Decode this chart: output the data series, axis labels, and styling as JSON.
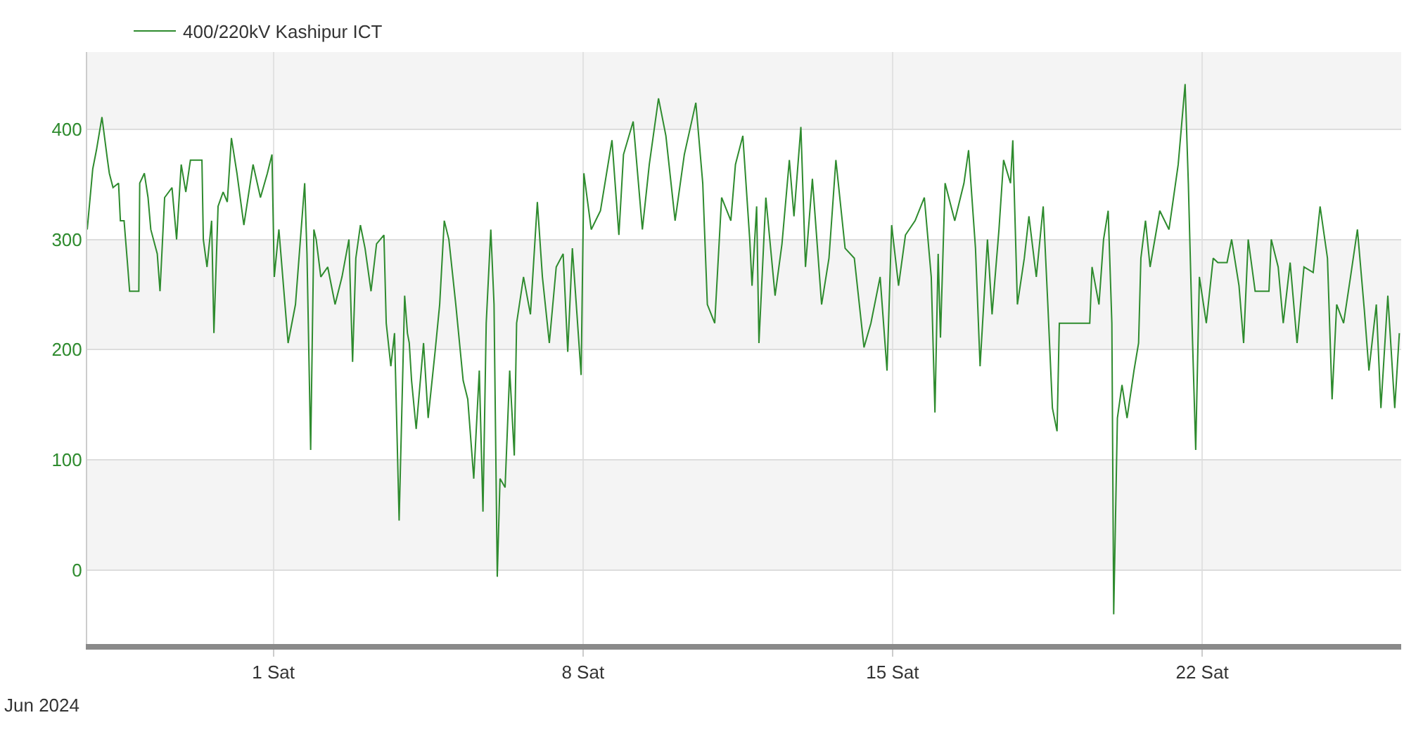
{
  "chart_data": {
    "type": "line",
    "xlabel": "Jun 2024",
    "xlim": [
      "2024-05-27T19:00",
      "2024-06-26T12:00"
    ],
    "xticks": [
      {
        "value": "2024-06-01",
        "label": "1 Sat"
      },
      {
        "value": "2024-06-08",
        "label": "8 Sat"
      },
      {
        "value": "2024-06-15",
        "label": "15 Sat"
      },
      {
        "value": "2024-06-22",
        "label": "22 Sat"
      }
    ],
    "ylim": [
      -67,
      470
    ],
    "yticks": [
      0,
      100,
      200,
      300,
      400
    ],
    "grid": true,
    "legend": "top left",
    "marker": "none",
    "line_style": "solid",
    "bands": [
      {
        "axis": "y",
        "from": 0,
        "to": 100,
        "color": "#f4f4f4"
      },
      {
        "axis": "y",
        "from": 200,
        "to": 300,
        "color": "#f4f4f4"
      },
      {
        "axis": "y",
        "from": 400,
        "to": 470,
        "color": "#f4f4f4"
      }
    ],
    "x": [
      "2024-05-27T19:00",
      "2024-05-27T22:00",
      "2024-05-28T00:00",
      "2024-05-28T03:00",
      "2024-05-28T06:00",
      "2024-05-28T07:00",
      "2024-05-28T09:00",
      "2024-05-28T12:00",
      "2024-05-28T13:00",
      "2024-05-28T15:00",
      "2024-05-28T17:00",
      "2024-05-28T18:00",
      "2024-05-28T23:00",
      "2024-05-28T23:30",
      "2024-05-29T02:00",
      "2024-05-29T04:00",
      "2024-05-29T05:30",
      "2024-05-29T09:00",
      "2024-05-29T10:30",
      "2024-05-29T13:00",
      "2024-05-29T17:00",
      "2024-05-29T19:30",
      "2024-05-29T22:00",
      "2024-05-30T00:30",
      "2024-05-30T03:00",
      "2024-05-30T09:15",
      "2024-05-30T10:00",
      "2024-05-30T12:00",
      "2024-05-30T14:30",
      "2024-05-30T15:45",
      "2024-05-30T18:00",
      "2024-05-30T20:45",
      "2024-05-30T23:00",
      "2024-05-31T01:15",
      "2024-05-31T04:15",
      "2024-05-31T08:00",
      "2024-05-31T13:00",
      "2024-05-31T17:00",
      "2024-05-31T20:45",
      "2024-05-31T23:15",
      "2024-06-01T00:30",
      "2024-06-01T03:00",
      "2024-06-01T08:00",
      "2024-06-01T12:00",
      "2024-06-01T17:00",
      "2024-06-01T18:15",
      "2024-06-01T20:15",
      "2024-06-01T22:00",
      "2024-06-01T23:15",
      "2024-06-02T01:45",
      "2024-06-02T05:30",
      "2024-06-02T09:30",
      "2024-06-02T13:15",
      "2024-06-02T17:00",
      "2024-06-02T19:00",
      "2024-06-02T20:45",
      "2024-06-02T23:15",
      "2024-06-03T01:45",
      "2024-06-03T05:00",
      "2024-06-03T08:00",
      "2024-06-03T12:00",
      "2024-06-03T13:15",
      "2024-06-03T15:45",
      "2024-06-03T17:45",
      "2024-06-03T20:15",
      "2024-06-03T23:15",
      "2024-06-04T00:45",
      "2024-06-04T01:45",
      "2024-06-04T03:00",
      "2024-06-04T05:30",
      "2024-06-04T09:30",
      "2024-06-04T12:00",
      "2024-06-04T15:45",
      "2024-06-04T18:15",
      "2024-06-04T20:45",
      "2024-06-04T23:15",
      "2024-06-05T03:00",
      "2024-06-05T07:00",
      "2024-06-05T09:30",
      "2024-06-05T12:45",
      "2024-06-05T15:45",
      "2024-06-05T17:45",
      "2024-06-05T19:30",
      "2024-06-05T22:00",
      "2024-06-05T23:45",
      "2024-06-06T01:30",
      "2024-06-06T03:00",
      "2024-06-06T05:45",
      "2024-06-06T08:15",
      "2024-06-06T10:45",
      "2024-06-06T12:00",
      "2024-06-06T15:45",
      "2024-06-06T19:30",
      "2024-06-06T23:15",
      "2024-06-07T02:00",
      "2024-06-07T05:45",
      "2024-06-07T09:30",
      "2024-06-07T13:15",
      "2024-06-07T15:45",
      "2024-06-07T18:15",
      "2024-06-07T20:45",
      "2024-06-07T23:00",
      "2024-06-08T00:30",
      "2024-06-08T04:30",
      "2024-06-08T09:30",
      "2024-06-08T15:45",
      "2024-06-08T19:30",
      "2024-06-08T22:00",
      "2024-06-09T03:15",
      "2024-06-09T08:15",
      "2024-06-09T12:00",
      "2024-06-09T17:00",
      "2024-06-09T21:00",
      "2024-06-10T02:00",
      "2024-06-10T07:00",
      "2024-06-10T13:15",
      "2024-06-10T17:00",
      "2024-06-10T19:30",
      "2024-06-10T23:30",
      "2024-06-11T03:15",
      "2024-06-11T08:15",
      "2024-06-11T10:45",
      "2024-06-11T14:45",
      "2024-06-11T18:30",
      "2024-06-11T19:45",
      "2024-06-11T22:15",
      "2024-06-11T23:30",
      "2024-06-12T03:15",
      "2024-06-12T08:15",
      "2024-06-12T12:00",
      "2024-06-12T16:00",
      "2024-06-12T18:30",
      "2024-06-12T22:15",
      "2024-06-13T00:45",
      "2024-06-13T04:30",
      "2024-06-13T09:30",
      "2024-06-13T13:30",
      "2024-06-13T17:15",
      "2024-06-13T22:15",
      "2024-06-14T03:15",
      "2024-06-14T08:30",
      "2024-06-14T12:15",
      "2024-06-14T17:15",
      "2024-06-14T21:00",
      "2024-06-14T23:30",
      "2024-06-15T03:15",
      "2024-06-15T07:00",
      "2024-06-15T12:15",
      "2024-06-15T17:15",
      "2024-06-15T21:00",
      "2024-06-15T23:00",
      "2024-06-16T00:45",
      "2024-06-16T02:00",
      "2024-06-16T04:30",
      "2024-06-16T09:45",
      "2024-06-16T14:45",
      "2024-06-16T17:15",
      "2024-06-16T21:00",
      "2024-06-16T23:30",
      "2024-06-17T03:30",
      "2024-06-17T06:00",
      "2024-06-17T09:45",
      "2024-06-17T12:15",
      "2024-06-17T16:00",
      "2024-06-17T17:15",
      "2024-06-17T19:45",
      "2024-06-17T23:30",
      "2024-06-18T02:00",
      "2024-06-18T06:00",
      "2024-06-18T09:45",
      "2024-06-18T12:15",
      "2024-06-18T14:45",
      "2024-06-18T17:15",
      "2024-06-18T18:30",
      "2024-06-19T11:00",
      "2024-06-19T12:15",
      "2024-06-19T16:00",
      "2024-06-19T18:30",
      "2024-06-19T21:00",
      "2024-06-19T23:00",
      "2024-06-20T00:00",
      "2024-06-20T02:00",
      "2024-06-20T04:30",
      "2024-06-20T07:15",
      "2024-06-20T11:00",
      "2024-06-20T13:30",
      "2024-06-20T14:45",
      "2024-06-20T17:15",
      "2024-06-20T19:45",
      "2024-06-21T01:00",
      "2024-06-21T06:00",
      "2024-06-21T11:00",
      "2024-06-21T14:45",
      "2024-06-21T16:30",
      "2024-06-21T18:30",
      "2024-06-21T20:30",
      "2024-06-21T22:30",
      "2024-06-22T02:15",
      "2024-06-22T06:00",
      "2024-06-22T08:30",
      "2024-06-22T13:30",
      "2024-06-22T16:00",
      "2024-06-22T20:00",
      "2024-06-22T22:30",
      "2024-06-23T01:00",
      "2024-06-23T04:45",
      "2024-06-23T12:15",
      "2024-06-23T13:30",
      "2024-06-23T17:15",
      "2024-06-23T20:00",
      "2024-06-23T23:45",
      "2024-06-24T03:30",
      "2024-06-24T07:15",
      "2024-06-24T12:15",
      "2024-06-24T16:00",
      "2024-06-24T20:00",
      "2024-06-24T22:30",
      "2024-06-25T01:00",
      "2024-06-25T04:45",
      "2024-06-25T08:30",
      "2024-06-25T12:15",
      "2024-06-25T16:00",
      "2024-06-25T18:30",
      "2024-06-25T22:30",
      "2024-06-26T01:00",
      "2024-06-26T04:45",
      "2024-06-26T08:30",
      "2024-06-26T11:00"
    ],
    "series": [
      {
        "name": "400/220kV Kashipur ICT",
        "color": "#2e8b2e",
        "values": [
          309,
          364,
          381,
          411,
          372,
          360,
          347,
          351,
          317,
          317,
          275,
          253,
          253,
          351,
          360,
          338,
          309,
          287,
          253,
          338,
          347,
          300,
          368,
          343,
          372,
          372,
          300,
          275,
          317,
          215,
          330,
          343,
          334,
          392,
          360,
          313,
          368,
          338,
          360,
          377,
          266,
          309,
          206,
          241,
          351,
          287,
          109,
          309,
          300,
          266,
          275,
          241,
          266,
          300,
          189,
          283,
          313,
          292,
          253,
          296,
          304,
          224,
          185,
          215,
          45,
          249,
          215,
          206,
          172,
          128,
          206,
          138,
          198,
          241,
          317,
          300,
          241,
          172,
          155,
          83,
          181,
          53,
          224,
          309,
          241,
          -6,
          83,
          75,
          181,
          104,
          224,
          266,
          232,
          334,
          266,
          206,
          275,
          287,
          198,
          292,
          232,
          177,
          360,
          309,
          326,
          390,
          304,
          377,
          407,
          309,
          368,
          428,
          394,
          317,
          377,
          424,
          351,
          241,
          224,
          338,
          317,
          368,
          394,
          300,
          258,
          330,
          206,
          338,
          249,
          296,
          372,
          321,
          402,
          275,
          355,
          241,
          283,
          372,
          292,
          283,
          202,
          224,
          266,
          181,
          313,
          258,
          304,
          317,
          338,
          266,
          143,
          287,
          211,
          351,
          317,
          351,
          381,
          292,
          185,
          300,
          232,
          309,
          372,
          351,
          390,
          241,
          283,
          321,
          266,
          330,
          241,
          147,
          126,
          224,
          224,
          275,
          241,
          300,
          326,
          224,
          -40,
          138,
          168,
          138,
          181,
          206,
          283,
          317,
          275,
          326,
          309,
          368,
          441,
          351,
          224,
          109,
          266,
          224,
          283,
          279,
          279,
          300,
          258,
          206,
          300,
          253,
          253,
          300,
          275,
          224,
          279,
          206,
          275,
          270,
          330,
          283,
          155,
          241,
          224,
          266,
          309,
          236,
          181,
          241,
          147,
          249,
          147,
          215
        ]
      }
    ]
  }
}
